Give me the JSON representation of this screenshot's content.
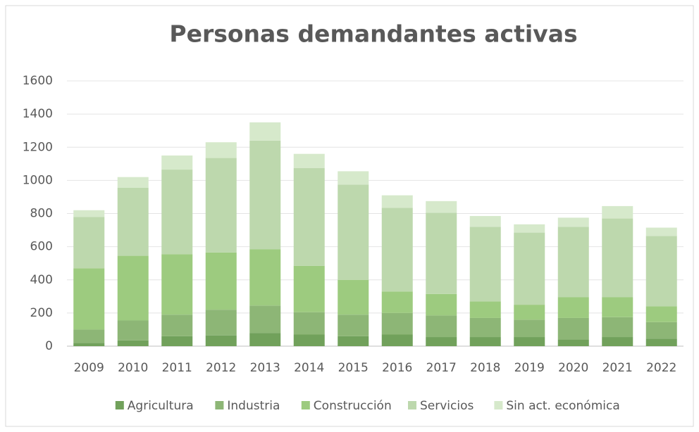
{
  "chart_data": {
    "type": "stacked_bar",
    "title": "Personas demandantes activas",
    "categories": [
      "2009",
      "2010",
      "2011",
      "2012",
      "2013",
      "2014",
      "2015",
      "2016",
      "2017",
      "2018",
      "2019",
      "2020",
      "2021",
      "2022"
    ],
    "series": [
      {
        "name": "Agricultura",
        "color": "#71a15b",
        "values": [
          20,
          35,
          60,
          65,
          80,
          70,
          60,
          70,
          55,
          55,
          55,
          40,
          55,
          45
        ]
      },
      {
        "name": "Industria",
        "color": "#8db676",
        "values": [
          80,
          120,
          130,
          155,
          165,
          135,
          130,
          130,
          130,
          115,
          105,
          130,
          120,
          100
        ]
      },
      {
        "name": "Construcción",
        "color": "#9dcb7f",
        "values": [
          370,
          390,
          365,
          345,
          340,
          280,
          210,
          130,
          130,
          100,
          90,
          125,
          120,
          95
        ]
      },
      {
        "name": "Servicios",
        "color": "#bdd8ad",
        "values": [
          310,
          410,
          510,
          570,
          655,
          590,
          575,
          505,
          490,
          450,
          435,
          425,
          475,
          425
        ]
      },
      {
        "name": "Sin act. económica",
        "color": "#d6e9cb",
        "values": [
          40,
          65,
          85,
          95,
          110,
          85,
          80,
          75,
          70,
          65,
          50,
          55,
          75,
          50
        ]
      }
    ],
    "ylim": [
      0,
      1600
    ],
    "yticks": [
      0,
      200,
      400,
      600,
      800,
      1000,
      1200,
      1400,
      1600
    ],
    "grid": true,
    "legend": "bottom"
  }
}
